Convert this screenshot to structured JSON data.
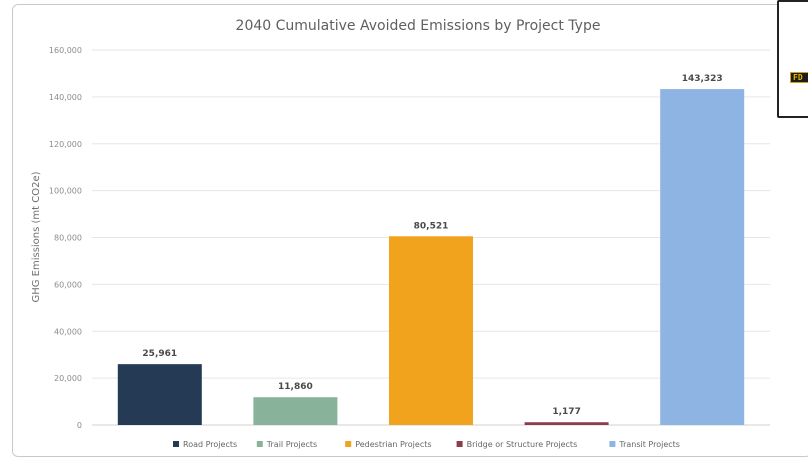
{
  "corner_logo_text": "FD",
  "chart_data": {
    "type": "bar",
    "title": "2040 Cumulative Avoided Emissions by Project Type",
    "ylabel": "GHG Emissions (mt CO2e)",
    "xlabel": "",
    "ylim": [
      0,
      160000
    ],
    "yticks": [
      "160,000",
      "140,000",
      "120,000",
      "100,000",
      "80,000",
      "60,000",
      "40,000",
      "20,000",
      "0"
    ],
    "grid": true,
    "legend_position": "bottom",
    "categories": [
      "Road Projects",
      "Trail Projects",
      "Pedestrian Projects",
      "Bridge or Structure Projects",
      "Transit Projects"
    ],
    "values": [
      25961,
      11860,
      80521,
      1177,
      143323
    ],
    "data_labels": [
      "25,961",
      "11,860",
      "80,521",
      "1,177",
      "143,323"
    ],
    "colors": [
      "#243a55",
      "#88b39a",
      "#f2a31e",
      "#8e3b4e",
      "#8eb4e3"
    ]
  }
}
